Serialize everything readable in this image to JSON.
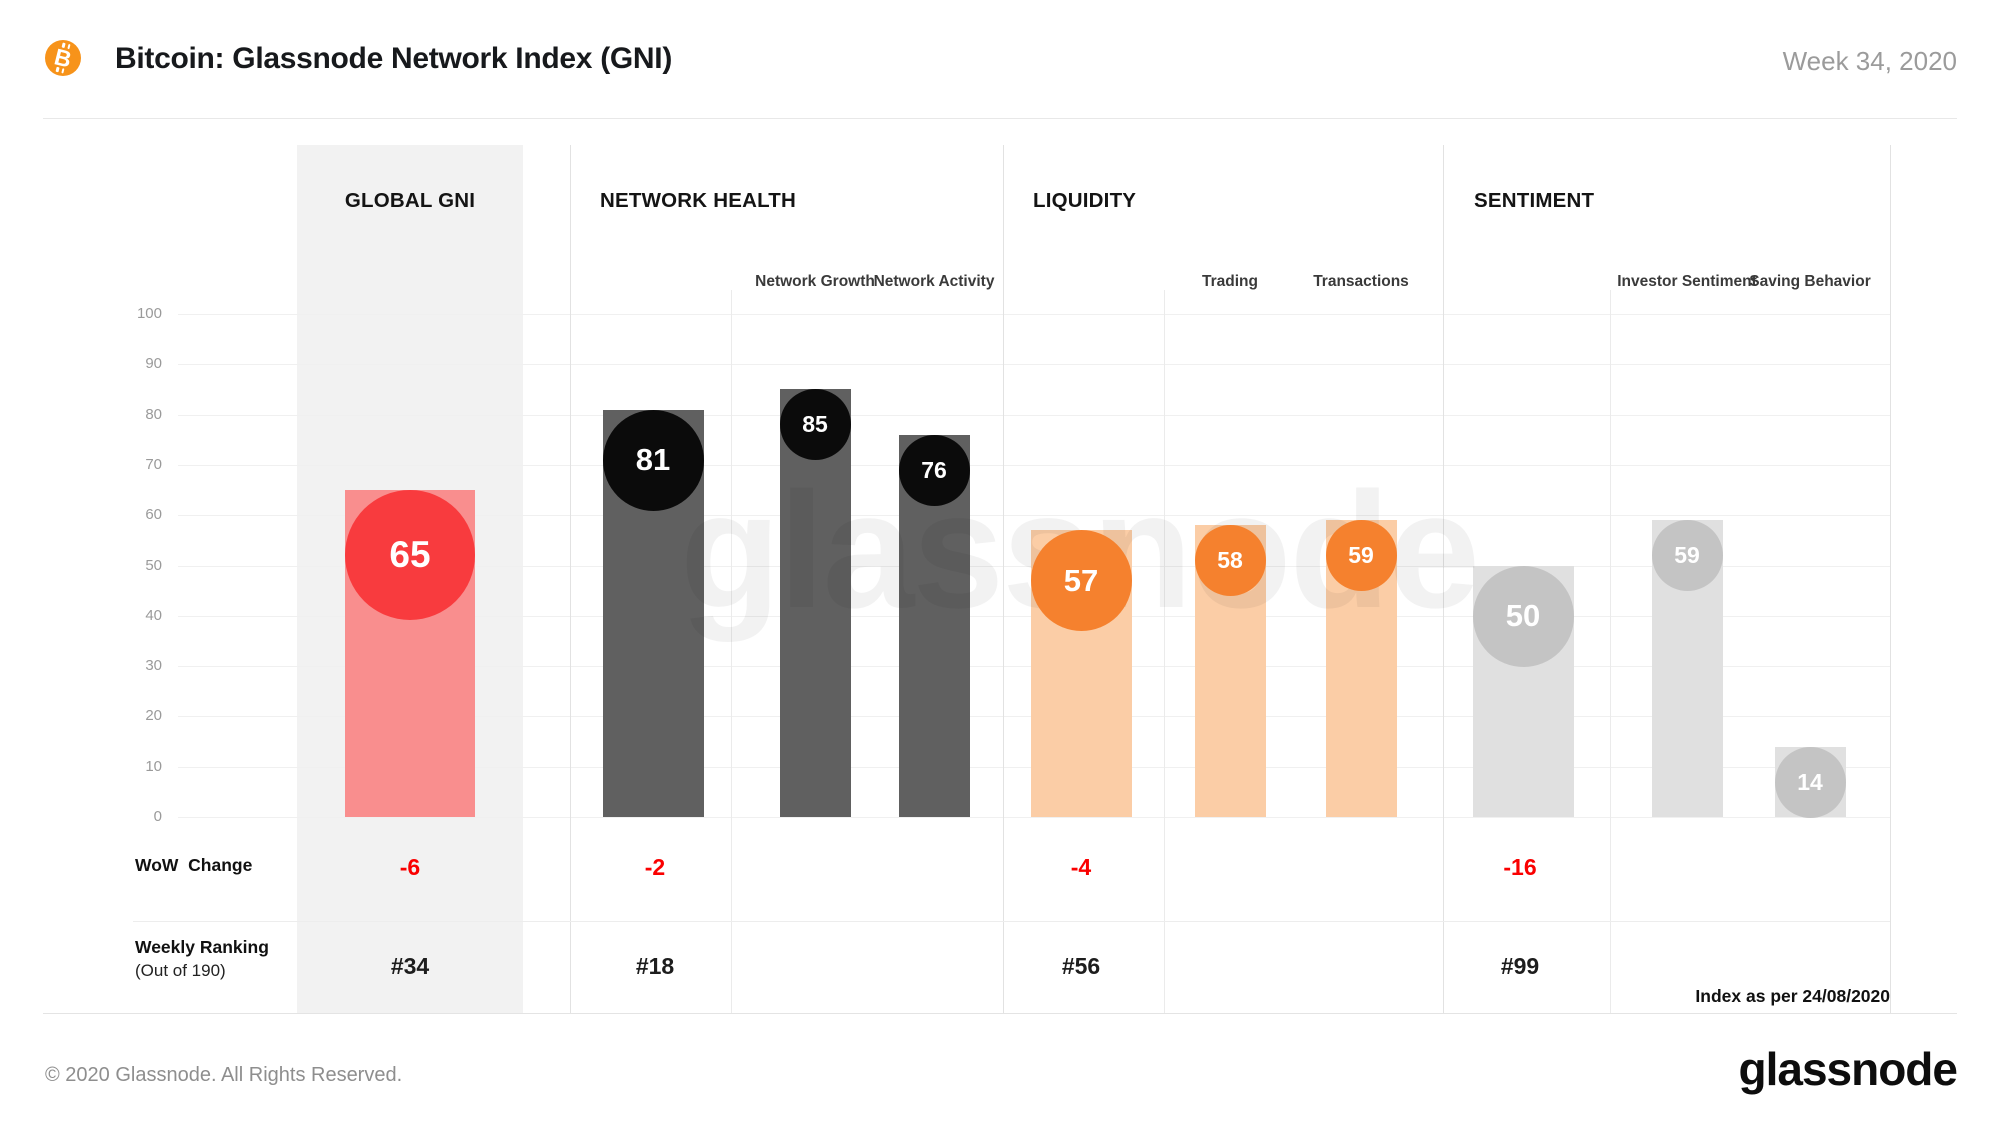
{
  "header": {
    "title": "Bitcoin: Glassnode Network Index (GNI)",
    "week": "Week 34, 2020"
  },
  "watermark": "glassnode",
  "axis": {
    "min": 0,
    "max": 100,
    "step": 10,
    "ticks": [
      100,
      90,
      80,
      70,
      60,
      50,
      40,
      30,
      20,
      10,
      0
    ]
  },
  "rows": {
    "wow_label": "WoW  Change",
    "ranking_label": "Weekly Ranking",
    "ranking_sublabel": "(Out of 190)",
    "index_note": "Index as per 24/08/2020"
  },
  "footer": {
    "copyright": "© 2020 Glassnode. All Rights Reserved.",
    "logo": "glassnode"
  },
  "colors": {
    "bitcoin_orange": "#f7931a",
    "wow_negative": "#fa0000",
    "rank_text": "#1d1d1d",
    "themes": {
      "red": {
        "bubble": "#f83b3e",
        "bar": "#f98e8e"
      },
      "dark": {
        "bubble": "#0b0b0b",
        "bar": "#606060"
      },
      "orange": {
        "bubble": "#f5812e",
        "bar": "#fbcda6"
      },
      "grey": {
        "bubble": "#c4c4c4",
        "bar": "#e0e0e0"
      }
    }
  },
  "chart_data": {
    "type": "bar",
    "title": "Bitcoin: Glassnode Network Index (GNI)",
    "period": "Week 34, 2020",
    "as_of": "24/08/2020",
    "ylim": [
      0,
      100
    ],
    "grid": true,
    "groups": [
      {
        "name": "GLOBAL GNI",
        "value": 65,
        "wow_change": "-6",
        "weekly_ranking": "#34",
        "theme": "red",
        "subs": []
      },
      {
        "name": "NETWORK HEALTH",
        "value": 81,
        "wow_change": "-2",
        "weekly_ranking": "#18",
        "theme": "dark",
        "subs": [
          {
            "label": "Network Growth",
            "value": 85
          },
          {
            "label": "Network Activity",
            "value": 76
          }
        ]
      },
      {
        "name": "LIQUIDITY",
        "value": 57,
        "wow_change": "-4",
        "weekly_ranking": "#56",
        "theme": "orange",
        "subs": [
          {
            "label": "Trading",
            "value": 58
          },
          {
            "label": "Transactions",
            "value": 59
          }
        ]
      },
      {
        "name": "SENTIMENT",
        "value": 50,
        "wow_change": "-16",
        "weekly_ranking": "#99",
        "theme": "grey",
        "subs": [
          {
            "label": "Investor Sentiment",
            "value": 59
          },
          {
            "label": "Saving Behavior",
            "value": 14
          }
        ]
      }
    ]
  }
}
